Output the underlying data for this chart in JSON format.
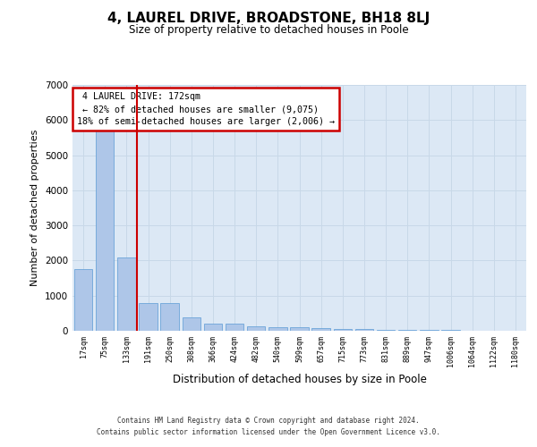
{
  "title": "4, LAUREL DRIVE, BROADSTONE, BH18 8LJ",
  "subtitle": "Size of property relative to detached houses in Poole",
  "xlabel": "Distribution of detached houses by size in Poole",
  "ylabel": "Number of detached properties",
  "categories": [
    "17sqm",
    "75sqm",
    "133sqm",
    "191sqm",
    "250sqm",
    "308sqm",
    "366sqm",
    "424sqm",
    "482sqm",
    "540sqm",
    "599sqm",
    "657sqm",
    "715sqm",
    "773sqm",
    "831sqm",
    "889sqm",
    "947sqm",
    "1006sqm",
    "1064sqm",
    "1122sqm",
    "1180sqm"
  ],
  "values": [
    1760,
    5800,
    2090,
    800,
    790,
    370,
    205,
    205,
    120,
    105,
    100,
    80,
    60,
    45,
    35,
    25,
    20,
    15,
    12,
    8,
    5
  ],
  "bar_color": "#aec6e8",
  "bar_edge_color": "#5b9bd5",
  "property_label": "4 LAUREL DRIVE: 172sqm",
  "pct_smaller": 82,
  "n_smaller": 9075,
  "pct_larger": 18,
  "n_larger": 2006,
  "annotation_box_color": "#ffffff",
  "annotation_box_edge": "#cc0000",
  "grid_color": "#c8d8e8",
  "bg_color": "#dce8f5",
  "ylim": [
    0,
    7000
  ],
  "footer1": "Contains HM Land Registry data © Crown copyright and database right 2024.",
  "footer2": "Contains public sector information licensed under the Open Government Licence v3.0."
}
